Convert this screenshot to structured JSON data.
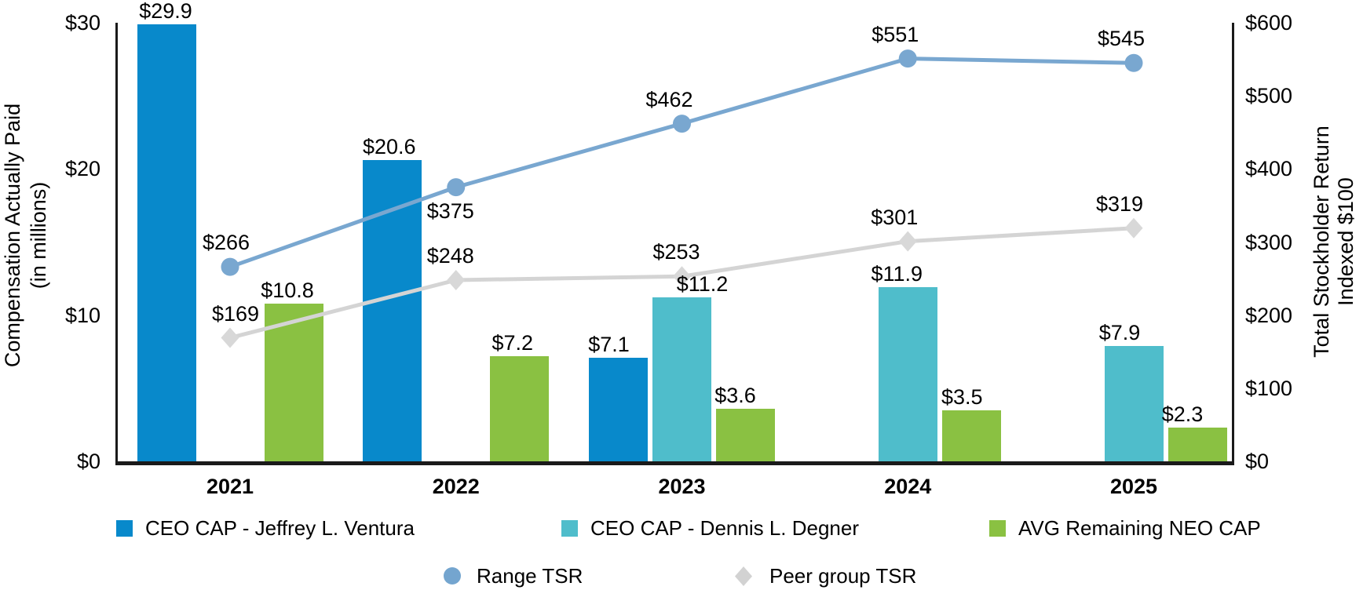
{
  "chart_data": {
    "type": "combo-bar-line",
    "categories": [
      "2021",
      "2022",
      "2023",
      "2024",
      "2025"
    ],
    "left_axis": {
      "label_line1": "Compensation Actually Paid",
      "label_line2": "(in millions)",
      "min": 0,
      "max": 30,
      "ticks": [
        {
          "value": 30,
          "label": "$30"
        },
        {
          "value": 20,
          "label": "$20"
        },
        {
          "value": 10,
          "label": "$10"
        },
        {
          "value": 0,
          "label": "$0"
        }
      ]
    },
    "right_axis": {
      "label_line1": "Total Stockholder Return",
      "label_line2": "Indexed $100",
      "min": 0,
      "max": 600,
      "ticks": [
        {
          "value": 600,
          "label": "$600"
        },
        {
          "value": 500,
          "label": "$500"
        },
        {
          "value": 400,
          "label": "$400"
        },
        {
          "value": 300,
          "label": "$300"
        },
        {
          "value": 200,
          "label": "$200"
        },
        {
          "value": 100,
          "label": "$100"
        },
        {
          "value": 0,
          "label": "$0"
        }
      ]
    },
    "bar_series": [
      {
        "name": "CEO CAP - Jeffrey L. Ventura",
        "color": "#0889CB",
        "slot": 0,
        "values": [
          29.9,
          20.6,
          7.1,
          null,
          null
        ],
        "labels": [
          "$29.9",
          "$20.6",
          "$7.1",
          null,
          null
        ],
        "label_dx": [
          -1,
          -4,
          -12,
          0,
          0
        ]
      },
      {
        "name": "CEO CAP - Dennis L. Degner",
        "color": "#4FBDCB",
        "slot": 1,
        "values": [
          null,
          null,
          11.2,
          11.9,
          7.9
        ],
        "labels": [
          null,
          null,
          "$11.2",
          "$11.9",
          "$7.9"
        ],
        "label_dx": [
          0,
          0,
          26,
          -14,
          -18
        ]
      },
      {
        "name": "AVG Remaining NEO CAP",
        "color": "#8AC142",
        "slot": 2,
        "values": [
          10.8,
          7.2,
          3.6,
          3.5,
          2.3
        ],
        "labels": [
          "$10.8",
          "$7.2",
          "$3.6",
          "$3.5",
          "$2.3"
        ],
        "label_dx": [
          -8,
          -9,
          -13,
          -12,
          -19
        ]
      }
    ],
    "line_series": [
      {
        "name": "Peer group TSR",
        "marker": "diamond",
        "color": "#D4D4D4",
        "marker_color": "#D8D8D8",
        "values": [
          169,
          248,
          253,
          301,
          319
        ],
        "labels": [
          "$169",
          "$248",
          "$253",
          "$301",
          "$319"
        ],
        "label_dx": [
          7,
          -7,
          -7,
          -17,
          -18
        ],
        "label_below": [
          false,
          false,
          false,
          false,
          false
        ]
      },
      {
        "name": "Range TSR",
        "marker": "circle",
        "color": "#79A7D0",
        "marker_color": "#79A7D0",
        "values": [
          266,
          375,
          462,
          551,
          545
        ],
        "labels": [
          "$266",
          "$375",
          "$462",
          "$551",
          "$545"
        ],
        "label_dx": [
          -5,
          -7,
          -16,
          -16,
          -16
        ],
        "label_below": [
          false,
          true,
          false,
          false,
          false
        ]
      }
    ]
  },
  "legend": {
    "bar_items": [
      {
        "label": "CEO CAP - Jeffrey L. Ventura",
        "color": "#0889CB"
      },
      {
        "label": "CEO CAP - Dennis L. Degner",
        "color": "#4FBDCB"
      },
      {
        "label": "AVG Remaining NEO CAP",
        "color": "#8AC142"
      }
    ],
    "line_items": [
      {
        "label": "Range TSR",
        "marker": "circle",
        "color": "#74A5CF"
      },
      {
        "label": "Peer group TSR",
        "marker": "diamond",
        "color": "#D2D2D2"
      }
    ]
  }
}
